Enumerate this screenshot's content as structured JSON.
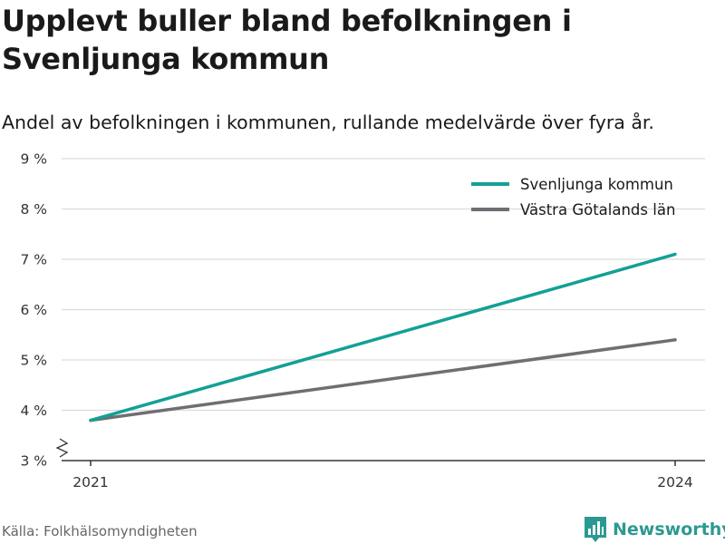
{
  "chart_data": {
    "type": "line",
    "title": "Upplevt buller bland befolkningen i Svenljunga kommun",
    "subtitle": "Andel av befolkningen i kommunen, rullande medelvärde över fyra år.",
    "x": [
      "2021",
      "2024"
    ],
    "y_ticks": [
      "3 %",
      "4 %",
      "5 %",
      "6 %",
      "7 %",
      "8 %",
      "9 %"
    ],
    "ylim": [
      3,
      9
    ],
    "y_axis_break": true,
    "grid": "horizontal",
    "legend_position": "top-right",
    "series": [
      {
        "name": "Svenljunga kommun",
        "values": [
          3.8,
          7.1
        ],
        "color": "#13a095"
      },
      {
        "name": "Västra Götalands län",
        "values": [
          3.8,
          5.4
        ],
        "color": "#6e6e73"
      }
    ]
  },
  "footer": {
    "source": "Källa: Folkhälsomyndigheten",
    "brand": "Newsworthy",
    "brand_icon": "newsworthy-logo-icon"
  }
}
